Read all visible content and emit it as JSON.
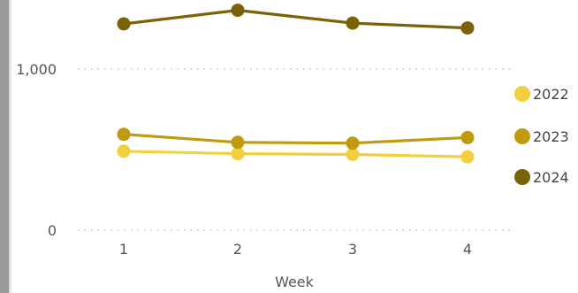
{
  "chart_data": {
    "type": "line",
    "xlabel": "Week",
    "ylabel": "",
    "categories": [
      "1",
      "2",
      "3",
      "4"
    ],
    "y_ticks": [
      {
        "value": 0,
        "label": "0"
      },
      {
        "value": 1000,
        "label": "1,000"
      }
    ],
    "ylim": [
      0,
      1520
    ],
    "grid": true,
    "legend_position": "right",
    "series": [
      {
        "name": "2022",
        "color": "#F2CF3E",
        "values": [
          490,
          475,
          470,
          455
        ]
      },
      {
        "name": "2023",
        "color": "#C09B12",
        "values": [
          595,
          545,
          540,
          575
        ]
      },
      {
        "name": "2024",
        "color": "#7A6206",
        "values": [
          1280,
          1365,
          1285,
          1255
        ]
      }
    ]
  }
}
